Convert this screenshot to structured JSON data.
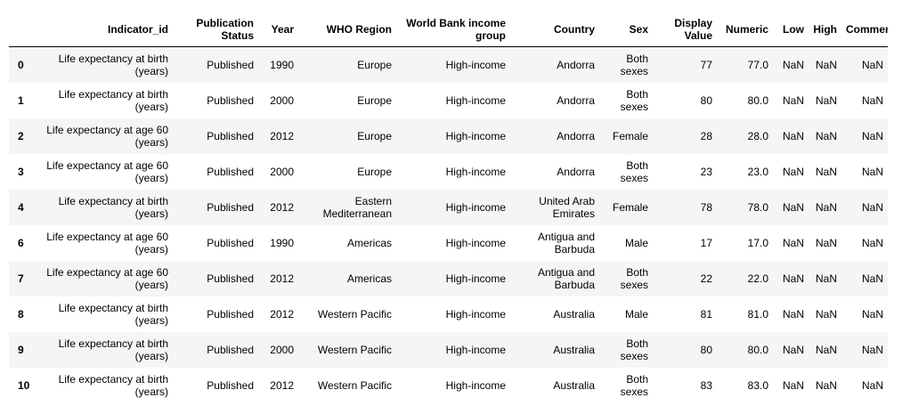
{
  "table": {
    "columns": [
      "",
      "Indicator_id",
      "Publication Status",
      "Year",
      "WHO Region",
      "World Bank income group",
      "Country",
      "Sex",
      "Display Value",
      "Numeric",
      "Low",
      "High",
      "Comments"
    ],
    "rows": [
      [
        "0",
        "Life expectancy at birth (years)",
        "Published",
        "1990",
        "Europe",
        "High-income",
        "Andorra",
        "Both sexes",
        "77",
        "77.0",
        "NaN",
        "NaN",
        "NaN"
      ],
      [
        "1",
        "Life expectancy at birth (years)",
        "Published",
        "2000",
        "Europe",
        "High-income",
        "Andorra",
        "Both sexes",
        "80",
        "80.0",
        "NaN",
        "NaN",
        "NaN"
      ],
      [
        "2",
        "Life expectancy at age 60 (years)",
        "Published",
        "2012",
        "Europe",
        "High-income",
        "Andorra",
        "Female",
        "28",
        "28.0",
        "NaN",
        "NaN",
        "NaN"
      ],
      [
        "3",
        "Life expectancy at age 60 (years)",
        "Published",
        "2000",
        "Europe",
        "High-income",
        "Andorra",
        "Both sexes",
        "23",
        "23.0",
        "NaN",
        "NaN",
        "NaN"
      ],
      [
        "4",
        "Life expectancy at birth (years)",
        "Published",
        "2012",
        "Eastern Mediterranean",
        "High-income",
        "United Arab Emirates",
        "Female",
        "78",
        "78.0",
        "NaN",
        "NaN",
        "NaN"
      ],
      [
        "6",
        "Life expectancy at age 60 (years)",
        "Published",
        "1990",
        "Americas",
        "High-income",
        "Antigua and Barbuda",
        "Male",
        "17",
        "17.0",
        "NaN",
        "NaN",
        "NaN"
      ],
      [
        "7",
        "Life expectancy at age 60 (years)",
        "Published",
        "2012",
        "Americas",
        "High-income",
        "Antigua and Barbuda",
        "Both sexes",
        "22",
        "22.0",
        "NaN",
        "NaN",
        "NaN"
      ],
      [
        "8",
        "Life expectancy at birth (years)",
        "Published",
        "2012",
        "Western Pacific",
        "High-income",
        "Australia",
        "Male",
        "81",
        "81.0",
        "NaN",
        "NaN",
        "NaN"
      ],
      [
        "9",
        "Life expectancy at birth (years)",
        "Published",
        "2000",
        "Western Pacific",
        "High-income",
        "Australia",
        "Both sexes",
        "80",
        "80.0",
        "NaN",
        "NaN",
        "NaN"
      ],
      [
        "10",
        "Life expectancy at birth (years)",
        "Published",
        "2012",
        "Western Pacific",
        "High-income",
        "Australia",
        "Both sexes",
        "83",
        "83.0",
        "NaN",
        "NaN",
        "NaN"
      ]
    ]
  }
}
